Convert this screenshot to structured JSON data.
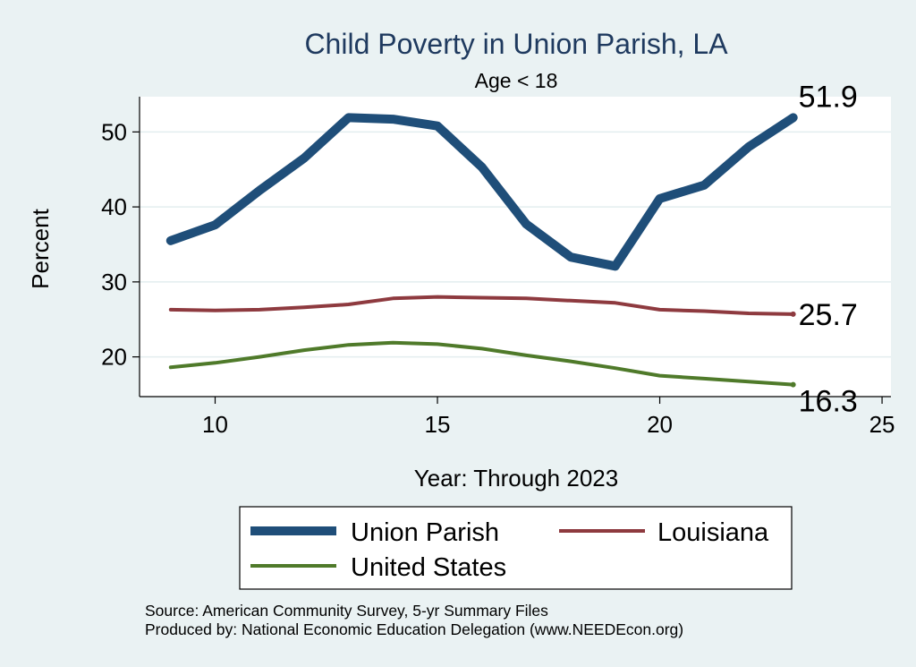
{
  "chart_data": {
    "type": "line",
    "title": "Child Poverty in Union Parish, LA",
    "subtitle": "Age < 18",
    "xlabel": "Year: Through 2023",
    "ylabel": "Percent",
    "x": [
      9,
      10,
      11,
      12,
      13,
      14,
      15,
      16,
      17,
      18,
      19,
      20,
      21,
      22,
      23
    ],
    "xlim": [
      8.3,
      25.2
    ],
    "ylim": [
      14.7,
      54.7
    ],
    "xticks": [
      10,
      15,
      20,
      25
    ],
    "yticks": [
      20,
      30,
      40,
      50
    ],
    "grid": true,
    "series": [
      {
        "name": "Union Parish",
        "color": "#1f4e79",
        "values": [
          35.5,
          37.6,
          42.2,
          46.5,
          51.9,
          51.7,
          50.8,
          45.3,
          37.7,
          33.3,
          32.1,
          41.1,
          42.9,
          48.0,
          51.9
        ],
        "end_label": "51.9"
      },
      {
        "name": "Louisiana",
        "color": "#8e3a3f",
        "values": [
          26.3,
          26.2,
          26.3,
          26.6,
          27.0,
          27.8,
          28.0,
          27.9,
          27.8,
          27.5,
          27.2,
          26.3,
          26.1,
          25.8,
          25.7
        ],
        "end_label": "25.7"
      },
      {
        "name": "United States",
        "color": "#4f7a2a",
        "values": [
          18.6,
          19.2,
          20.0,
          20.9,
          21.6,
          21.9,
          21.7,
          21.1,
          20.2,
          19.4,
          18.5,
          17.5,
          17.1,
          16.7,
          16.3
        ],
        "end_label": "16.3"
      }
    ]
  },
  "footer": {
    "source": "Source: American Community Survey, 5-yr Summary Files",
    "produced_by": "Produced by: National Economic Education Delegation (www.NEEDEcon.org)"
  }
}
